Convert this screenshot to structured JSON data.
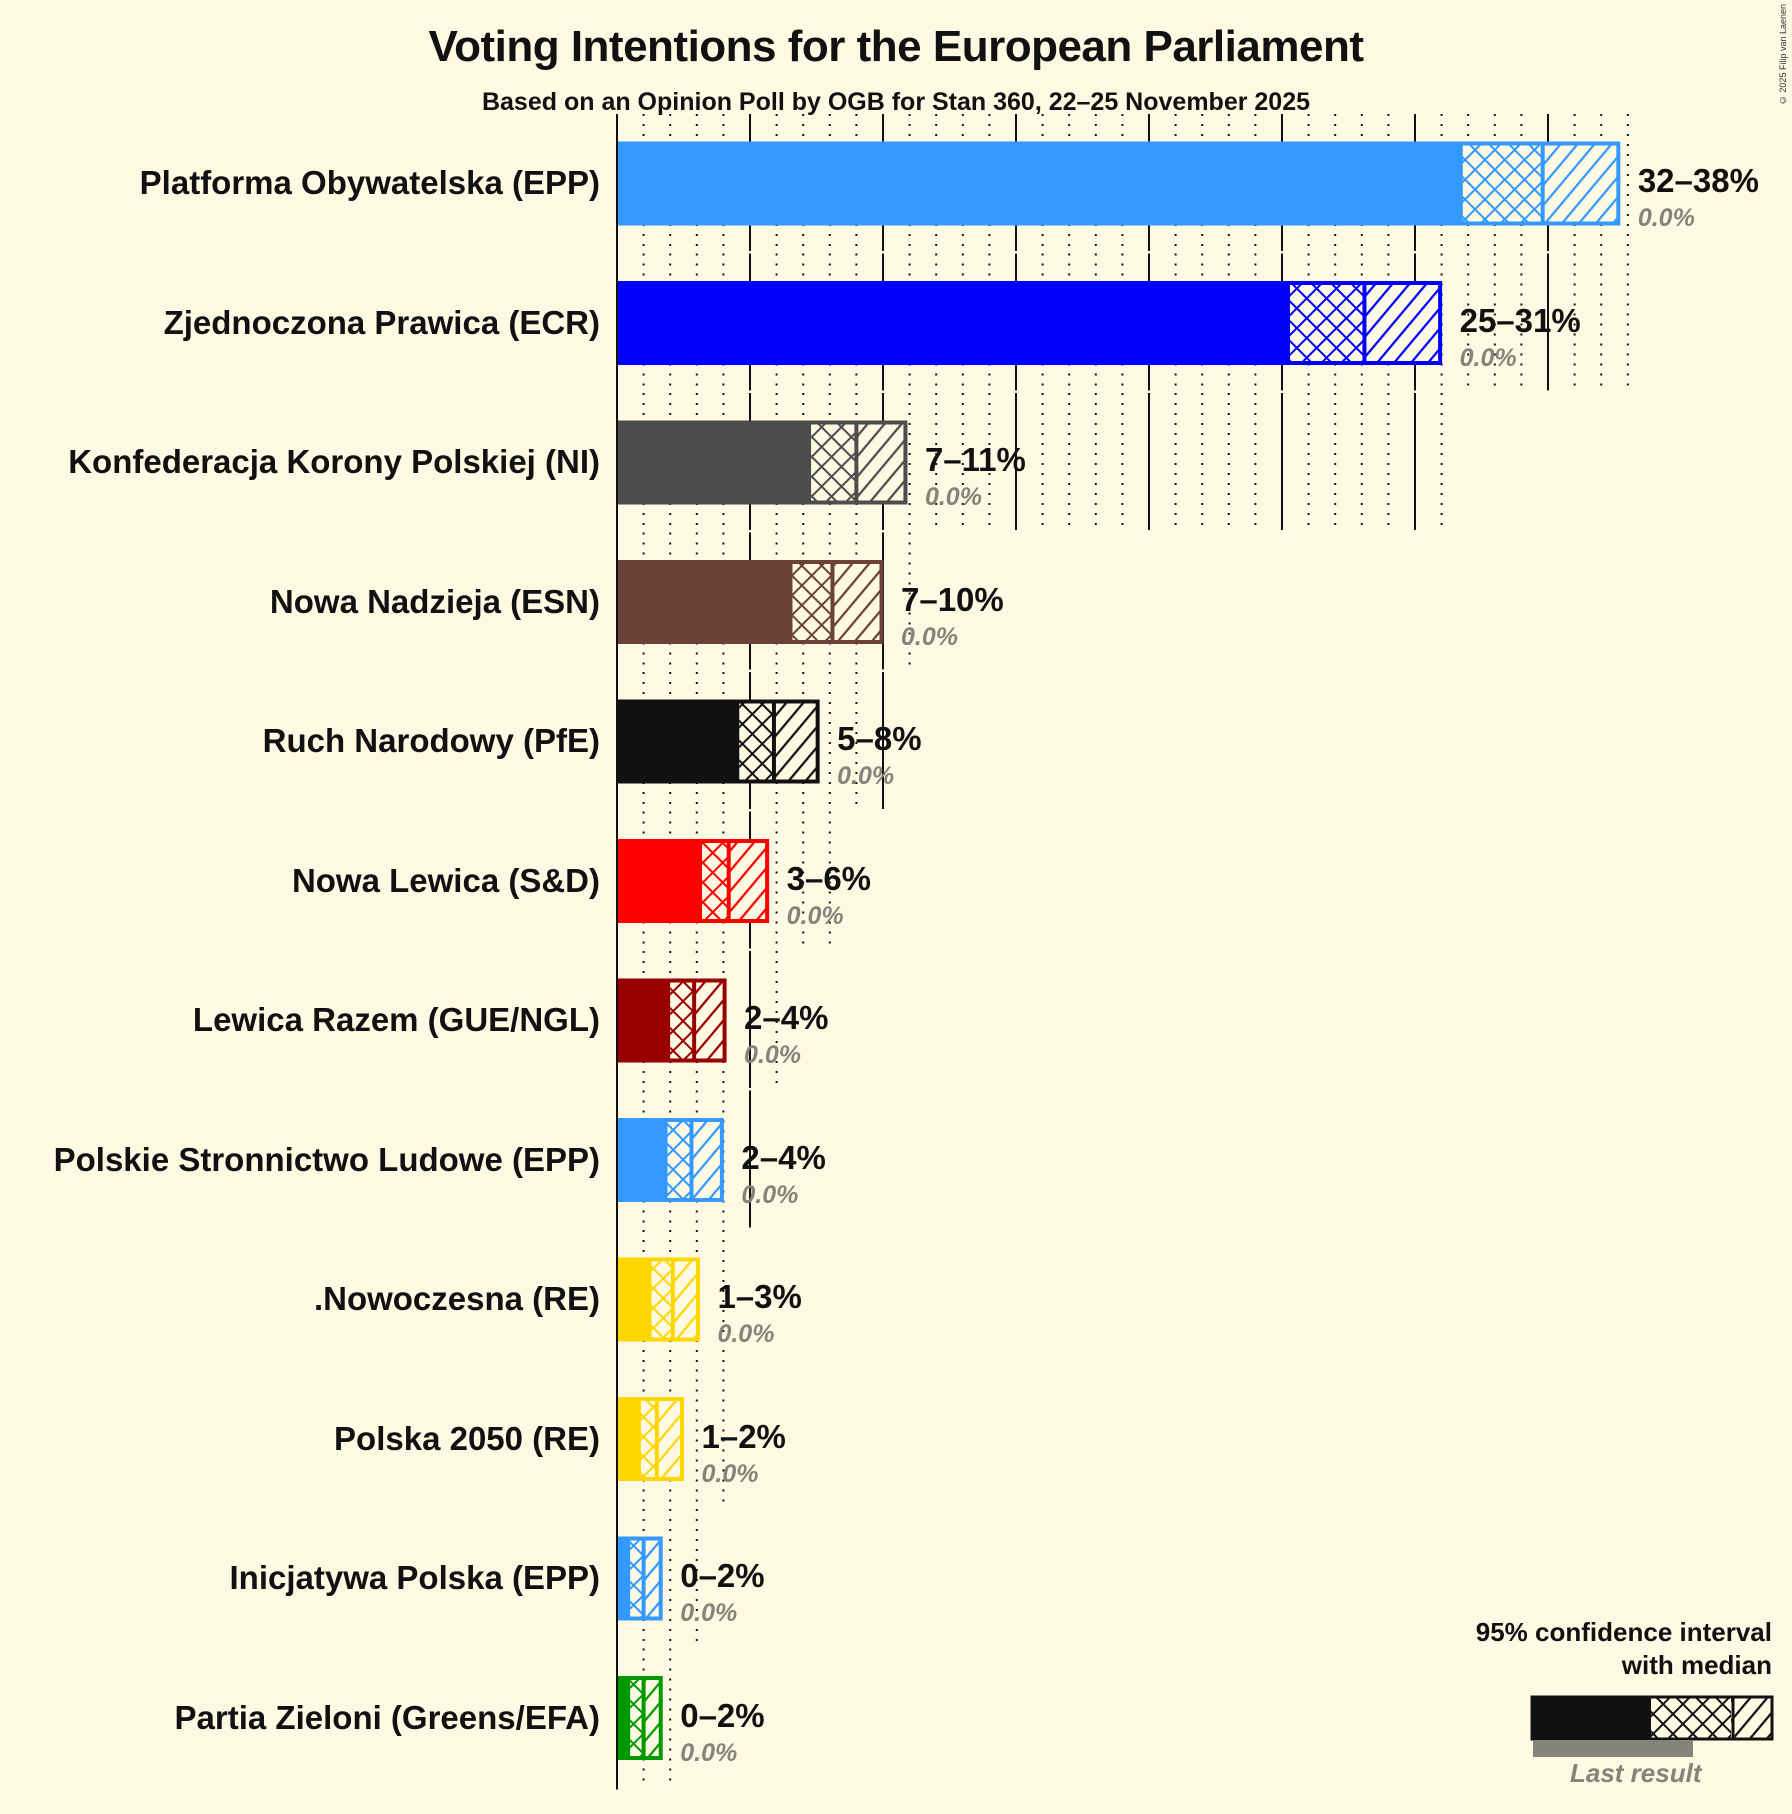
{
  "title": "Voting Intentions for the European Parliament",
  "subtitle": "Based on an Opinion Poll by OGB for Stan 360, 22–25 November 2025",
  "copyright": "© 2025 Filip van Laenen",
  "legend": {
    "line1": "95% confidence interval",
    "line2": "with median",
    "last_result": "Last result"
  },
  "chart_data": {
    "type": "bar",
    "orientation": "horizontal",
    "title": "Voting Intentions for the European Parliament",
    "subtitle": "Based on an Opinion Poll by OGB for Stan 360, 22–25 November 2025",
    "xlabel": "",
    "ylabel": "",
    "xlim": [
      0,
      38
    ],
    "grid": {
      "major_every": 5,
      "minor_every": 1
    },
    "legend_position": "bottom-right",
    "categories": [
      "Platforma Obywatelska (EPP)",
      "Zjednoczona Prawica (ECR)",
      "Konfederacja Korony Polskiej (NI)",
      "Nowa Nadzieja (ESN)",
      "Ruch Narodowy (PfE)",
      "Nowa Lewica (S&D)",
      "Lewica Razem (GUE/NGL)",
      "Polskie Stronnictwo Ludowe (EPP)",
      ".Nowoczesna (RE)",
      "Polska 2050 (RE)",
      "Inicjatywa Polska (EPP)",
      "Partia Zieloni (Greens/EFA)"
    ],
    "series": [
      {
        "name": "CI low",
        "values": [
          31.8,
          25.3,
          7.3,
          6.6,
          4.6,
          3.2,
          2.0,
          1.9,
          1.3,
          0.9,
          0.5,
          0.5
        ]
      },
      {
        "name": "Median",
        "values": [
          34.8,
          28.1,
          9.0,
          8.1,
          5.9,
          4.2,
          2.9,
          2.8,
          2.1,
          1.5,
          1.0,
          1.0
        ]
      },
      {
        "name": "CI high",
        "values": [
          37.7,
          31.0,
          10.9,
          10.0,
          7.6,
          5.7,
          4.1,
          4.0,
          3.1,
          2.5,
          1.7,
          1.7
        ]
      },
      {
        "name": "Last result",
        "values": [
          0.0,
          0.0,
          0.0,
          0.0,
          0.0,
          0.0,
          0.0,
          0.0,
          0.0,
          0.0,
          0.0,
          0.0
        ]
      }
    ],
    "range_labels": [
      "32–38%",
      "25–31%",
      "7–11%",
      "7–10%",
      "5–8%",
      "3–6%",
      "2–4%",
      "2–4%",
      "1–3%",
      "1–2%",
      "0–2%",
      "0–2%"
    ],
    "last_labels": [
      "0.0%",
      "0.0%",
      "0.0%",
      "0.0%",
      "0.0%",
      "0.0%",
      "0.0%",
      "0.0%",
      "0.0%",
      "0.0%",
      "0.0%",
      "0.0%"
    ],
    "colors": [
      "#3399FF",
      "#0000FF",
      "#4D4D4D",
      "#6B4238",
      "#111111",
      "#FF0000",
      "#990000",
      "#3399FF",
      "#FFD700",
      "#FFD700",
      "#3399FF",
      "#009900"
    ]
  },
  "parties": [
    {
      "name": "Platforma Obywatelska (EPP)",
      "range": "32–38%",
      "last": "0.0%"
    },
    {
      "name": "Zjednoczona Prawica (ECR)",
      "range": "25–31%",
      "last": "0.0%"
    },
    {
      "name": "Konfederacja Korony Polskiej (NI)",
      "range": "7–11%",
      "last": "0.0%"
    },
    {
      "name": "Nowa Nadzieja (ESN)",
      "range": "7–10%",
      "last": "0.0%"
    },
    {
      "name": "Ruch Narodowy (PfE)",
      "range": "5–8%",
      "last": "0.0%"
    },
    {
      "name": "Nowa Lewica (S&D)",
      "range": "3–6%",
      "last": "0.0%"
    },
    {
      "name": "Lewica Razem (GUE/NGL)",
      "range": "2–4%",
      "last": "0.0%"
    },
    {
      "name": "Polskie Stronnictwo Ludowe (EPP)",
      "range": "2–4%",
      "last": "0.0%"
    },
    {
      "name": ".Nowoczesna (RE)",
      "range": "1–3%",
      "last": "0.0%"
    },
    {
      "name": "Polska 2050 (RE)",
      "range": "1–2%",
      "last": "0.0%"
    },
    {
      "name": "Inicjatywa Polska (EPP)",
      "range": "0–2%",
      "last": "0.0%"
    },
    {
      "name": "Partia Zieloni (Greens/EFA)",
      "range": "0–2%",
      "last": "0.0%"
    }
  ]
}
